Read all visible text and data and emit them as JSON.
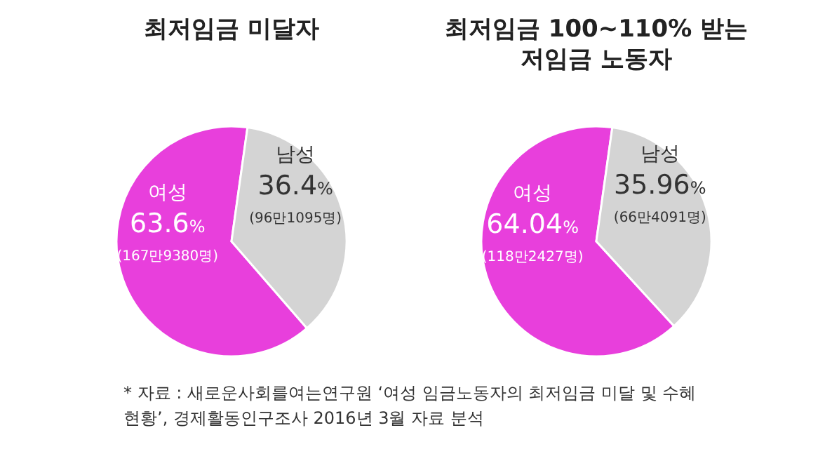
{
  "chart_data": [
    {
      "type": "pie",
      "title": "최저임금 미달자",
      "categories": [
        "여성",
        "남성"
      ],
      "values": [
        63.6,
        36.4
      ],
      "colors": [
        "#e83fdc",
        "#d4d4d4"
      ],
      "value_labels": [
        "63.6%",
        "36.4%"
      ],
      "annotations": [
        {
          "text": "(167만9380명)",
          "x": "여성"
        },
        {
          "text": "(96만1095명)",
          "x": "남성"
        }
      ]
    },
    {
      "type": "pie",
      "title": "최저임금 100~110% 받는 저임금 노동자",
      "categories": [
        "여성",
        "남성"
      ],
      "values": [
        64.04,
        35.96
      ],
      "colors": [
        "#e83fdc",
        "#d4d4d4"
      ],
      "value_labels": [
        "64.04%",
        "35.96%"
      ],
      "annotations": [
        {
          "text": "(118만2427명)",
          "x": "여성"
        },
        {
          "text": "(66만4091명)",
          "x": "남성"
        },
        "* 자료 : 새로운사회를여는연구원 ‘여성 임금노동자의 최저임금 미달 및 수혜 현황’, 경제활동인구조사 2016년 3월 자료 분석"
      ]
    }
  ]
}
